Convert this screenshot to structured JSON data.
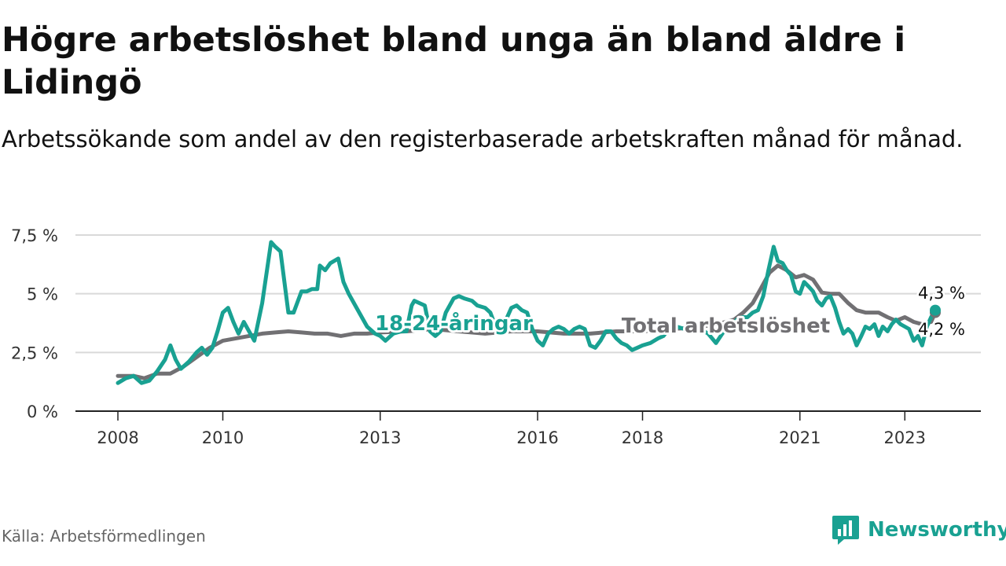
{
  "title": "Högre arbetslöshet bland unga än bland äldre i Lidingö",
  "subtitle": "Arbetssökande som andel av den registerbaserade arbetskraften månad för månad.",
  "source": "Källa: Arbetsförmedlingen",
  "brand": {
    "name": "Newsworthy",
    "icon": "newsworthy-logo-icon",
    "color": "#19a192"
  },
  "chart_data": {
    "type": "line",
    "title": "Högre arbetslöshet bland unga än bland äldre i Lidingö",
    "xlabel": "",
    "ylabel": "",
    "x_range": [
      2008,
      2023.58
    ],
    "ylim": [
      0,
      7.5
    ],
    "y_ticks": [
      {
        "value": 0,
        "label": "0 %"
      },
      {
        "value": 2.5,
        "label": "2,5 %"
      },
      {
        "value": 5,
        "label": "5 %"
      },
      {
        "value": 7.5,
        "label": "7,5 %"
      }
    ],
    "x_ticks": [
      {
        "value": 2008,
        "label": "2008"
      },
      {
        "value": 2010,
        "label": "2010"
      },
      {
        "value": 2013,
        "label": "2013"
      },
      {
        "value": 2016,
        "label": "2016"
      },
      {
        "value": 2018,
        "label": "2018"
      },
      {
        "value": 2021,
        "label": "2021"
      },
      {
        "value": 2023,
        "label": "2023"
      }
    ],
    "grid": true,
    "series": [
      {
        "name": "Total arbetslöshet",
        "color": "#717073",
        "end_label": "4,2 %",
        "points": [
          [
            2008.0,
            1.5
          ],
          [
            2008.3,
            1.5
          ],
          [
            2008.5,
            1.4
          ],
          [
            2008.75,
            1.6
          ],
          [
            2009.0,
            1.6
          ],
          [
            2009.25,
            1.9
          ],
          [
            2009.5,
            2.3
          ],
          [
            2009.75,
            2.7
          ],
          [
            2010.0,
            3.0
          ],
          [
            2010.25,
            3.1
          ],
          [
            2010.5,
            3.2
          ],
          [
            2010.75,
            3.3
          ],
          [
            2011.0,
            3.35
          ],
          [
            2011.25,
            3.4
          ],
          [
            2011.5,
            3.35
          ],
          [
            2011.75,
            3.3
          ],
          [
            2012.0,
            3.3
          ],
          [
            2012.25,
            3.2
          ],
          [
            2012.5,
            3.3
          ],
          [
            2012.75,
            3.3
          ],
          [
            2013.0,
            3.35
          ],
          [
            2013.5,
            3.4
          ],
          [
            2014.0,
            3.5
          ],
          [
            2014.5,
            3.4
          ],
          [
            2015.0,
            3.3
          ],
          [
            2015.5,
            3.4
          ],
          [
            2016.0,
            3.4
          ],
          [
            2016.5,
            3.3
          ],
          [
            2017.0,
            3.3
          ],
          [
            2017.5,
            3.4
          ],
          [
            2018.0,
            3.4
          ],
          [
            2018.5,
            3.5
          ],
          [
            2019.0,
            3.55
          ],
          [
            2019.5,
            3.75
          ],
          [
            2019.75,
            3.9
          ],
          [
            2019.92,
            4.2
          ],
          [
            2020.1,
            4.6
          ],
          [
            2020.25,
            5.2
          ],
          [
            2020.42,
            5.9
          ],
          [
            2020.58,
            6.2
          ],
          [
            2020.75,
            6.0
          ],
          [
            2020.92,
            5.7
          ],
          [
            2021.08,
            5.8
          ],
          [
            2021.25,
            5.6
          ],
          [
            2021.42,
            5.05
          ],
          [
            2021.58,
            5.0
          ],
          [
            2021.75,
            5.0
          ],
          [
            2021.92,
            4.6
          ],
          [
            2022.08,
            4.3
          ],
          [
            2022.25,
            4.2
          ],
          [
            2022.5,
            4.2
          ],
          [
            2022.67,
            4.0
          ],
          [
            2022.83,
            3.85
          ],
          [
            2023.0,
            4.0
          ],
          [
            2023.17,
            3.8
          ],
          [
            2023.33,
            3.7
          ],
          [
            2023.5,
            3.8
          ],
          [
            2023.58,
            4.2
          ]
        ]
      },
      {
        "name": "18-24-åringar",
        "color": "#19a192",
        "end_label": "4,3 %",
        "points": [
          [
            2008.0,
            1.2
          ],
          [
            2008.15,
            1.4
          ],
          [
            2008.3,
            1.5
          ],
          [
            2008.45,
            1.2
          ],
          [
            2008.6,
            1.3
          ],
          [
            2008.75,
            1.7
          ],
          [
            2008.9,
            2.2
          ],
          [
            2009.0,
            2.8
          ],
          [
            2009.1,
            2.2
          ],
          [
            2009.2,
            1.8
          ],
          [
            2009.35,
            2.1
          ],
          [
            2009.5,
            2.5
          ],
          [
            2009.6,
            2.7
          ],
          [
            2009.7,
            2.4
          ],
          [
            2009.8,
            2.7
          ],
          [
            2009.9,
            3.4
          ],
          [
            2010.0,
            4.2
          ],
          [
            2010.1,
            4.4
          ],
          [
            2010.2,
            3.8
          ],
          [
            2010.3,
            3.3
          ],
          [
            2010.4,
            3.8
          ],
          [
            2010.5,
            3.4
          ],
          [
            2010.6,
            3.0
          ],
          [
            2010.75,
            4.6
          ],
          [
            2010.92,
            7.2
          ],
          [
            2011.0,
            7.0
          ],
          [
            2011.1,
            6.8
          ],
          [
            2011.25,
            4.2
          ],
          [
            2011.35,
            4.2
          ],
          [
            2011.5,
            5.1
          ],
          [
            2011.6,
            5.1
          ],
          [
            2011.7,
            5.2
          ],
          [
            2011.8,
            5.2
          ],
          [
            2011.85,
            6.2
          ],
          [
            2011.95,
            6.0
          ],
          [
            2012.05,
            6.3
          ],
          [
            2012.2,
            6.5
          ],
          [
            2012.3,
            5.5
          ],
          [
            2012.4,
            5.0
          ],
          [
            2012.55,
            4.4
          ],
          [
            2012.75,
            3.6
          ],
          [
            2012.9,
            3.3
          ],
          [
            2013.0,
            3.2
          ],
          [
            2013.1,
            3.0
          ],
          [
            2013.25,
            3.3
          ],
          [
            2013.4,
            3.4
          ],
          [
            2013.5,
            3.4
          ],
          [
            2013.6,
            4.5
          ],
          [
            2013.65,
            4.7
          ],
          [
            2013.75,
            4.6
          ],
          [
            2013.85,
            4.5
          ],
          [
            2013.95,
            3.4
          ],
          [
            2014.05,
            3.2
          ],
          [
            2014.15,
            3.4
          ],
          [
            2014.25,
            4.2
          ],
          [
            2014.4,
            4.8
          ],
          [
            2014.5,
            4.9
          ],
          [
            2014.6,
            4.8
          ],
          [
            2014.75,
            4.7
          ],
          [
            2014.85,
            4.5
          ],
          [
            2015.0,
            4.4
          ],
          [
            2015.1,
            4.2
          ],
          [
            2015.2,
            3.6
          ],
          [
            2015.3,
            3.5
          ],
          [
            2015.4,
            3.9
          ],
          [
            2015.5,
            4.4
          ],
          [
            2015.6,
            4.5
          ],
          [
            2015.7,
            4.3
          ],
          [
            2015.8,
            4.2
          ],
          [
            2015.9,
            3.5
          ],
          [
            2016.0,
            3.0
          ],
          [
            2016.1,
            2.8
          ],
          [
            2016.2,
            3.3
          ],
          [
            2016.3,
            3.5
          ],
          [
            2016.4,
            3.6
          ],
          [
            2016.5,
            3.5
          ],
          [
            2016.6,
            3.3
          ],
          [
            2016.7,
            3.5
          ],
          [
            2016.8,
            3.6
          ],
          [
            2016.9,
            3.5
          ],
          [
            2017.0,
            2.8
          ],
          [
            2017.1,
            2.7
          ],
          [
            2017.2,
            3.0
          ],
          [
            2017.3,
            3.4
          ],
          [
            2017.4,
            3.4
          ],
          [
            2017.5,
            3.1
          ],
          [
            2017.6,
            2.9
          ],
          [
            2017.7,
            2.8
          ],
          [
            2017.8,
            2.6
          ],
          [
            2017.9,
            2.7
          ],
          [
            2018.0,
            2.8
          ],
          [
            2018.15,
            2.9
          ],
          [
            2018.3,
            3.1
          ],
          [
            2018.4,
            3.2
          ],
          [
            2018.5,
            3.5
          ],
          [
            2018.65,
            3.6
          ],
          [
            2018.8,
            3.5
          ],
          [
            2018.9,
            3.4
          ],
          [
            2019.0,
            3.6
          ],
          [
            2019.1,
            3.5
          ],
          [
            2019.25,
            3.3
          ],
          [
            2019.4,
            2.9
          ],
          [
            2019.55,
            3.4
          ],
          [
            2019.7,
            3.6
          ],
          [
            2019.8,
            3.9
          ],
          [
            2019.9,
            4.0
          ],
          [
            2020.0,
            4.0
          ],
          [
            2020.1,
            4.2
          ],
          [
            2020.2,
            4.3
          ],
          [
            2020.3,
            4.9
          ],
          [
            2020.4,
            6.0
          ],
          [
            2020.5,
            7.0
          ],
          [
            2020.58,
            6.4
          ],
          [
            2020.67,
            6.3
          ],
          [
            2020.75,
            6.0
          ],
          [
            2020.83,
            5.8
          ],
          [
            2020.92,
            5.1
          ],
          [
            2021.0,
            5.0
          ],
          [
            2021.08,
            5.5
          ],
          [
            2021.17,
            5.3
          ],
          [
            2021.25,
            5.1
          ],
          [
            2021.33,
            4.7
          ],
          [
            2021.42,
            4.5
          ],
          [
            2021.5,
            4.8
          ],
          [
            2021.58,
            4.9
          ],
          [
            2021.67,
            4.4
          ],
          [
            2021.75,
            3.8
          ],
          [
            2021.83,
            3.3
          ],
          [
            2021.92,
            3.5
          ],
          [
            2022.0,
            3.3
          ],
          [
            2022.08,
            2.8
          ],
          [
            2022.17,
            3.2
          ],
          [
            2022.25,
            3.6
          ],
          [
            2022.33,
            3.5
          ],
          [
            2022.42,
            3.7
          ],
          [
            2022.5,
            3.2
          ],
          [
            2022.58,
            3.6
          ],
          [
            2022.67,
            3.4
          ],
          [
            2022.75,
            3.7
          ],
          [
            2022.83,
            3.9
          ],
          [
            2022.92,
            3.7
          ],
          [
            2023.0,
            3.6
          ],
          [
            2023.08,
            3.5
          ],
          [
            2023.17,
            3.0
          ],
          [
            2023.25,
            3.2
          ],
          [
            2023.33,
            2.8
          ],
          [
            2023.42,
            3.6
          ],
          [
            2023.5,
            4.0
          ],
          [
            2023.58,
            4.3
          ]
        ]
      }
    ],
    "annotations": [
      {
        "series": "18-24-åringar",
        "text": "18-24-åringar",
        "x": 2012.9,
        "y": 3.75
      },
      {
        "series": "Total arbetslöshet",
        "text": "Total arbetslöshet",
        "x": 2017.6,
        "y": 3.65
      }
    ]
  }
}
